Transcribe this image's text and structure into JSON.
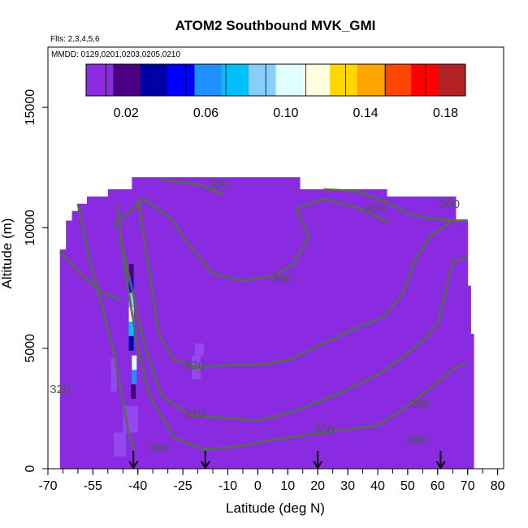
{
  "chart_data": {
    "type": "heatmap",
    "title": "ATOM2 Southbound MVK_GMI",
    "flights_label": "Flts: 2,3,4,5,6",
    "dates_label": "MMDD: 0129,0201,0203,0205,0210",
    "xlabel": "Latitude (deg N)",
    "ylabel": "Altitude (m)",
    "xlim": [
      -70,
      82
    ],
    "ylim": [
      0,
      17500
    ],
    "x_ticks": [
      -70,
      -55,
      -40,
      -25,
      -10,
      0,
      10,
      20,
      30,
      40,
      50,
      60,
      70,
      80
    ],
    "x_tick_labels": [
      "-70",
      "-55",
      "-40",
      "-25",
      "-10",
      "0",
      "10",
      "20",
      "30",
      "40",
      "50",
      "60",
      "70",
      "80"
    ],
    "y_ticks": [
      0,
      5000,
      10000,
      15000
    ],
    "y_tick_labels": [
      "0",
      "5000",
      "10000",
      "15000"
    ],
    "colorbar": {
      "range": [
        0,
        0.19
      ],
      "ticks": [
        0.02,
        0.06,
        0.1,
        0.14,
        0.18
      ],
      "tick_labels": [
        "0.02",
        "0.06",
        "0.10",
        "0.14",
        "0.18"
      ],
      "colors": [
        "#8a2be2",
        "#4b0082",
        "#0000a8",
        "#0000ff",
        "#1e90ff",
        "#00bfff",
        "#87cefa",
        "#e0ffff",
        "#ffffe0",
        "#ffd700",
        "#ffa500",
        "#ff4500",
        "#ff0000",
        "#b22222"
      ]
    },
    "background_value": 0.005,
    "cells": [
      {
        "lat": -42.2,
        "alt": 8200,
        "value": 0.02
      },
      {
        "lat": -42.2,
        "alt": 7600,
        "value": 0.05
      },
      {
        "lat": -42.2,
        "alt": 7000,
        "value": 0.09
      },
      {
        "lat": -42.2,
        "alt": 6400,
        "value": 0.11
      },
      {
        "lat": -42.2,
        "alt": 5800,
        "value": 0.07
      },
      {
        "lat": -42.2,
        "alt": 5200,
        "value": 0.04
      },
      {
        "lat": -41.2,
        "alt": 4400,
        "value": 0.1
      },
      {
        "lat": -41.2,
        "alt": 3800,
        "value": 0.06
      },
      {
        "lat": -41.5,
        "alt": 3200,
        "value": 0.02
      }
    ],
    "contours": [
      {
        "label": "280",
        "points": [
          [
            -66,
            9000
          ],
          [
            -60,
            8200
          ],
          [
            -53,
            7400
          ],
          [
            -46,
            7000
          ]
        ]
      },
      {
        "label": "290",
        "points": [
          [
            -60,
            11000
          ],
          [
            -56,
            8600
          ],
          [
            -52,
            6800
          ],
          [
            -48,
            4800
          ],
          [
            -45,
            2800
          ],
          [
            -43,
            1400
          ],
          [
            -41,
            800
          ]
        ]
      },
      {
        "label": "300",
        "points": [
          [
            -47,
            11000
          ],
          [
            -44,
            8000
          ],
          [
            -40,
            5000
          ],
          [
            -36,
            3000
          ],
          [
            -28,
            1300
          ],
          [
            -18,
            800
          ],
          [
            -8,
            900
          ],
          [
            5,
            1200
          ],
          [
            22,
            1500
          ],
          [
            40,
            1800
          ],
          [
            50,
            2600
          ],
          [
            58,
            3400
          ],
          [
            66,
            4200
          ],
          [
            70,
            4400
          ]
        ]
      },
      {
        "label": "310",
        "points": [
          [
            -46,
            9600
          ],
          [
            -42,
            7500
          ],
          [
            -38,
            5200
          ],
          [
            -32,
            3000
          ],
          [
            -22,
            2200
          ],
          [
            -10,
            2100
          ],
          [
            0,
            2000
          ],
          [
            10,
            2300
          ],
          [
            25,
            3000
          ],
          [
            40,
            3900
          ],
          [
            48,
            4600
          ],
          [
            55,
            5300
          ],
          [
            60,
            6000
          ],
          [
            63,
            7500
          ],
          [
            65,
            8600
          ],
          [
            70,
            8800
          ]
        ]
      },
      {
        "label": "320",
        "points": [
          [
            -40,
            11200
          ],
          [
            -36,
            8000
          ],
          [
            -33,
            5600
          ],
          [
            -28,
            4500
          ],
          [
            -20,
            4200
          ],
          [
            -10,
            4300
          ],
          [
            0,
            4300
          ],
          [
            10,
            4500
          ],
          [
            22,
            5200
          ],
          [
            32,
            5800
          ],
          [
            42,
            6300
          ],
          [
            48,
            7200
          ],
          [
            53,
            8800
          ],
          [
            58,
            9700
          ],
          [
            65,
            10300
          ],
          [
            70,
            10300
          ]
        ]
      },
      {
        "label": "340",
        "points": [
          [
            -48,
            10100
          ],
          [
            -38,
            11200
          ],
          [
            -29,
            10400
          ],
          [
            -23,
            9300
          ],
          [
            -15,
            8100
          ],
          [
            -5,
            7800
          ],
          [
            5,
            8000
          ],
          [
            12,
            8500
          ],
          [
            17,
            9600
          ],
          [
            13,
            10800
          ],
          [
            22,
            11200
          ],
          [
            34,
            10800
          ],
          [
            44,
            10200
          ]
        ]
      },
      {
        "label": "350",
        "points": [
          [
            22,
            11600
          ],
          [
            34,
            11500
          ],
          [
            44,
            11000
          ],
          [
            50,
            10600
          ],
          [
            57,
            10400
          ],
          [
            66,
            10300
          ]
        ]
      },
      {
        "label": "360",
        "points": [
          [
            -32,
            12000
          ],
          [
            -20,
            11800
          ],
          [
            -12,
            11400
          ]
        ]
      }
    ],
    "contour_labels": [
      {
        "text": "350",
        "lat": -13,
        "alt": 11800
      },
      {
        "text": "350",
        "lat": 39,
        "alt": 10800
      },
      {
        "text": "360",
        "lat": 64,
        "alt": 11000
      },
      {
        "text": "340",
        "lat": 8,
        "alt": 7900
      },
      {
        "text": "320",
        "lat": -21,
        "alt": 4300
      },
      {
        "text": "310",
        "lat": -21,
        "alt": 2300
      },
      {
        "text": "300",
        "lat": 22,
        "alt": 1600
      },
      {
        "text": "290",
        "lat": 54,
        "alt": 2700
      },
      {
        "text": "290",
        "lat": 53,
        "alt": 1200
      },
      {
        "text": "360",
        "lat": -33,
        "alt": 900
      },
      {
        "text": "320",
        "lat": -66,
        "alt": 3300
      }
    ],
    "arrows_lat": [
      -41.5,
      -17.5,
      20,
      61
    ]
  }
}
